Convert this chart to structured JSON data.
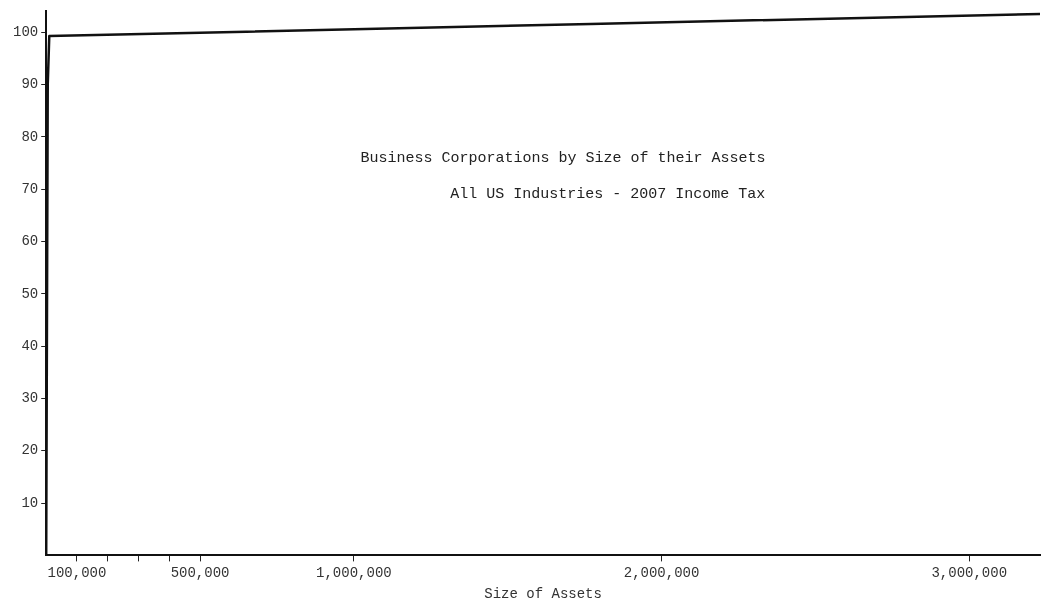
{
  "chart_data": {
    "type": "line",
    "title": "Business Corporations by Size of their Assets",
    "subtitle": "All US Industries - 2007 Income Tax",
    "xlabel": "Size of Assets",
    "x": [
      0,
      5000,
      10000,
      650000,
      1770000,
      3230000
    ],
    "values": [
      0,
      90,
      99.3,
      100.1,
      101.6,
      103.5
    ],
    "color": "#111111",
    "xlim": [
      0,
      3230000
    ],
    "xticks": [
      {
        "value": 100000,
        "label": "100,000"
      },
      {
        "value": 200000,
        "label": null
      },
      {
        "value": 300000,
        "label": null
      },
      {
        "value": 400000,
        "label": null
      },
      {
        "value": 500000,
        "label": "500,000"
      },
      {
        "value": 1000000,
        "label": "1,000,000"
      },
      {
        "value": 2000000,
        "label": "2,000,000"
      },
      {
        "value": 3000000,
        "label": "3,000,000"
      }
    ],
    "ylim": [
      0,
      104
    ],
    "yticks": [
      10,
      20,
      30,
      40,
      50,
      60,
      70,
      80,
      90,
      100
    ],
    "grid": false,
    "legend": false,
    "marker": "none",
    "line_style": "solid"
  }
}
